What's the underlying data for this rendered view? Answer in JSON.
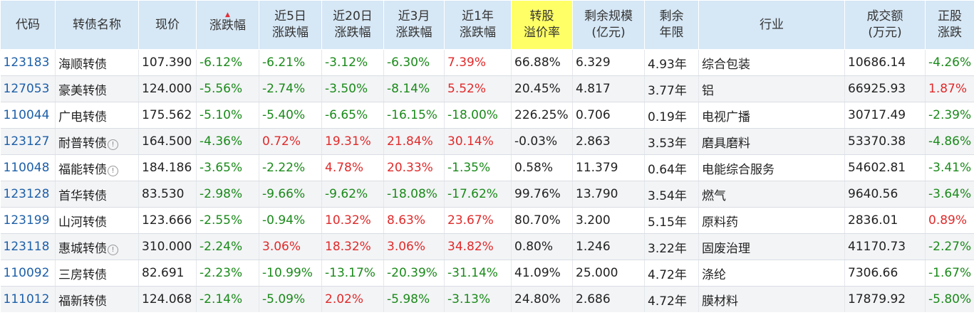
{
  "headers": {
    "code": "代码",
    "name": "转债名称",
    "price": "现价",
    "change": "涨跌幅",
    "change5_l1": "近5日",
    "change5_l2": "涨跌幅",
    "change20_l1": "近20日",
    "change20_l2": "涨跌幅",
    "change3m_l1": "近3月",
    "change3m_l2": "涨跌幅",
    "change1y_l1": "近1年",
    "change1y_l2": "涨跌幅",
    "premium_l1": "转股",
    "premium_l2": "溢价率",
    "scale_l1": "剩余规模",
    "scale_l2": "(亿元)",
    "term_l1": "剩余",
    "term_l2": "年限",
    "industry": "行业",
    "volume_l1": "成交额",
    "volume_l2": "(万元)",
    "stock_l1": "正股",
    "stock_l2": "涨跌"
  },
  "colors": {
    "header_bg": "#d6e7f5",
    "highlight_header": "#ffff66",
    "up": "#e02a2a",
    "down": "#1a8a1a",
    "code": "#1d5fa8"
  },
  "sort_indicator": "▲",
  "info_icon": "info-icon",
  "rows": [
    {
      "code": "123183",
      "name": "海顺转债",
      "info": false,
      "price": "107.390",
      "change": "-6.12%",
      "change5": "-6.21%",
      "change20": "-3.12%",
      "change3m": "-6.30%",
      "change1y": "7.39%",
      "premium": "66.88%",
      "scale": "6.329",
      "term": "4.93年",
      "industry": "综合包装",
      "volume": "10686.14",
      "stock": "-4.26%"
    },
    {
      "code": "127053",
      "name": "豪美转债",
      "info": false,
      "price": "124.000",
      "change": "-5.56%",
      "change5": "-2.74%",
      "change20": "-3.50%",
      "change3m": "-8.14%",
      "change1y": "5.52%",
      "premium": "20.45%",
      "scale": "4.817",
      "term": "3.77年",
      "industry": "铝",
      "volume": "66925.93",
      "stock": "1.87%"
    },
    {
      "code": "110044",
      "name": "广电转债",
      "info": false,
      "price": "175.562",
      "change": "-5.10%",
      "change5": "-5.40%",
      "change20": "-6.65%",
      "change3m": "-16.15%",
      "change1y": "-18.00%",
      "premium": "226.25%",
      "scale": "0.706",
      "term": "0.19年",
      "industry": "电视广播",
      "volume": "30717.49",
      "stock": "-2.39%"
    },
    {
      "code": "123127",
      "name": "耐普转债",
      "info": true,
      "price": "164.500",
      "change": "-4.36%",
      "change5": "0.72%",
      "change20": "19.31%",
      "change3m": "21.84%",
      "change1y": "30.14%",
      "premium": "-0.03%",
      "scale": "2.863",
      "term": "3.53年",
      "industry": "磨具磨料",
      "volume": "53370.38",
      "stock": "-4.86%"
    },
    {
      "code": "110048",
      "name": "福能转债",
      "info": true,
      "price": "184.186",
      "change": "-3.65%",
      "change5": "-2.22%",
      "change20": "4.78%",
      "change3m": "20.33%",
      "change1y": "-1.35%",
      "premium": "0.58%",
      "scale": "11.379",
      "term": "0.64年",
      "industry": "电能综合服务",
      "volume": "54602.81",
      "stock": "-3.41%"
    },
    {
      "code": "123128",
      "name": "首华转债",
      "info": false,
      "price": "83.530",
      "change": "-2.98%",
      "change5": "-9.66%",
      "change20": "-9.62%",
      "change3m": "-18.08%",
      "change1y": "-17.62%",
      "premium": "99.76%",
      "scale": "13.790",
      "term": "3.54年",
      "industry": "燃气",
      "volume": "9640.56",
      "stock": "-3.64%"
    },
    {
      "code": "123199",
      "name": "山河转债",
      "info": false,
      "price": "123.666",
      "change": "-2.55%",
      "change5": "-0.94%",
      "change20": "10.32%",
      "change3m": "8.63%",
      "change1y": "23.67%",
      "premium": "80.70%",
      "scale": "3.200",
      "term": "5.15年",
      "industry": "原料药",
      "volume": "2836.01",
      "stock": "0.89%"
    },
    {
      "code": "123118",
      "name": "惠城转债",
      "info": true,
      "price": "310.000",
      "change": "-2.24%",
      "change5": "3.06%",
      "change20": "18.32%",
      "change3m": "3.06%",
      "change1y": "34.82%",
      "premium": "0.80%",
      "scale": "1.246",
      "term": "3.22年",
      "industry": "固废治理",
      "volume": "41170.73",
      "stock": "-2.27%"
    },
    {
      "code": "110092",
      "name": "三房转债",
      "info": false,
      "price": "82.691",
      "change": "-2.23%",
      "change5": "-10.99%",
      "change20": "-13.17%",
      "change3m": "-20.39%",
      "change1y": "-31.14%",
      "premium": "41.09%",
      "scale": "25.000",
      "term": "4.72年",
      "industry": "涤纶",
      "volume": "7306.66",
      "stock": "-1.67%"
    },
    {
      "code": "111012",
      "name": "福新转债",
      "info": false,
      "price": "124.068",
      "change": "-2.14%",
      "change5": "-5.09%",
      "change20": "2.02%",
      "change3m": "-5.98%",
      "change1y": "-3.13%",
      "premium": "24.80%",
      "scale": "2.686",
      "term": "4.72年",
      "industry": "膜材料",
      "volume": "17879.92",
      "stock": "-5.80%"
    }
  ]
}
